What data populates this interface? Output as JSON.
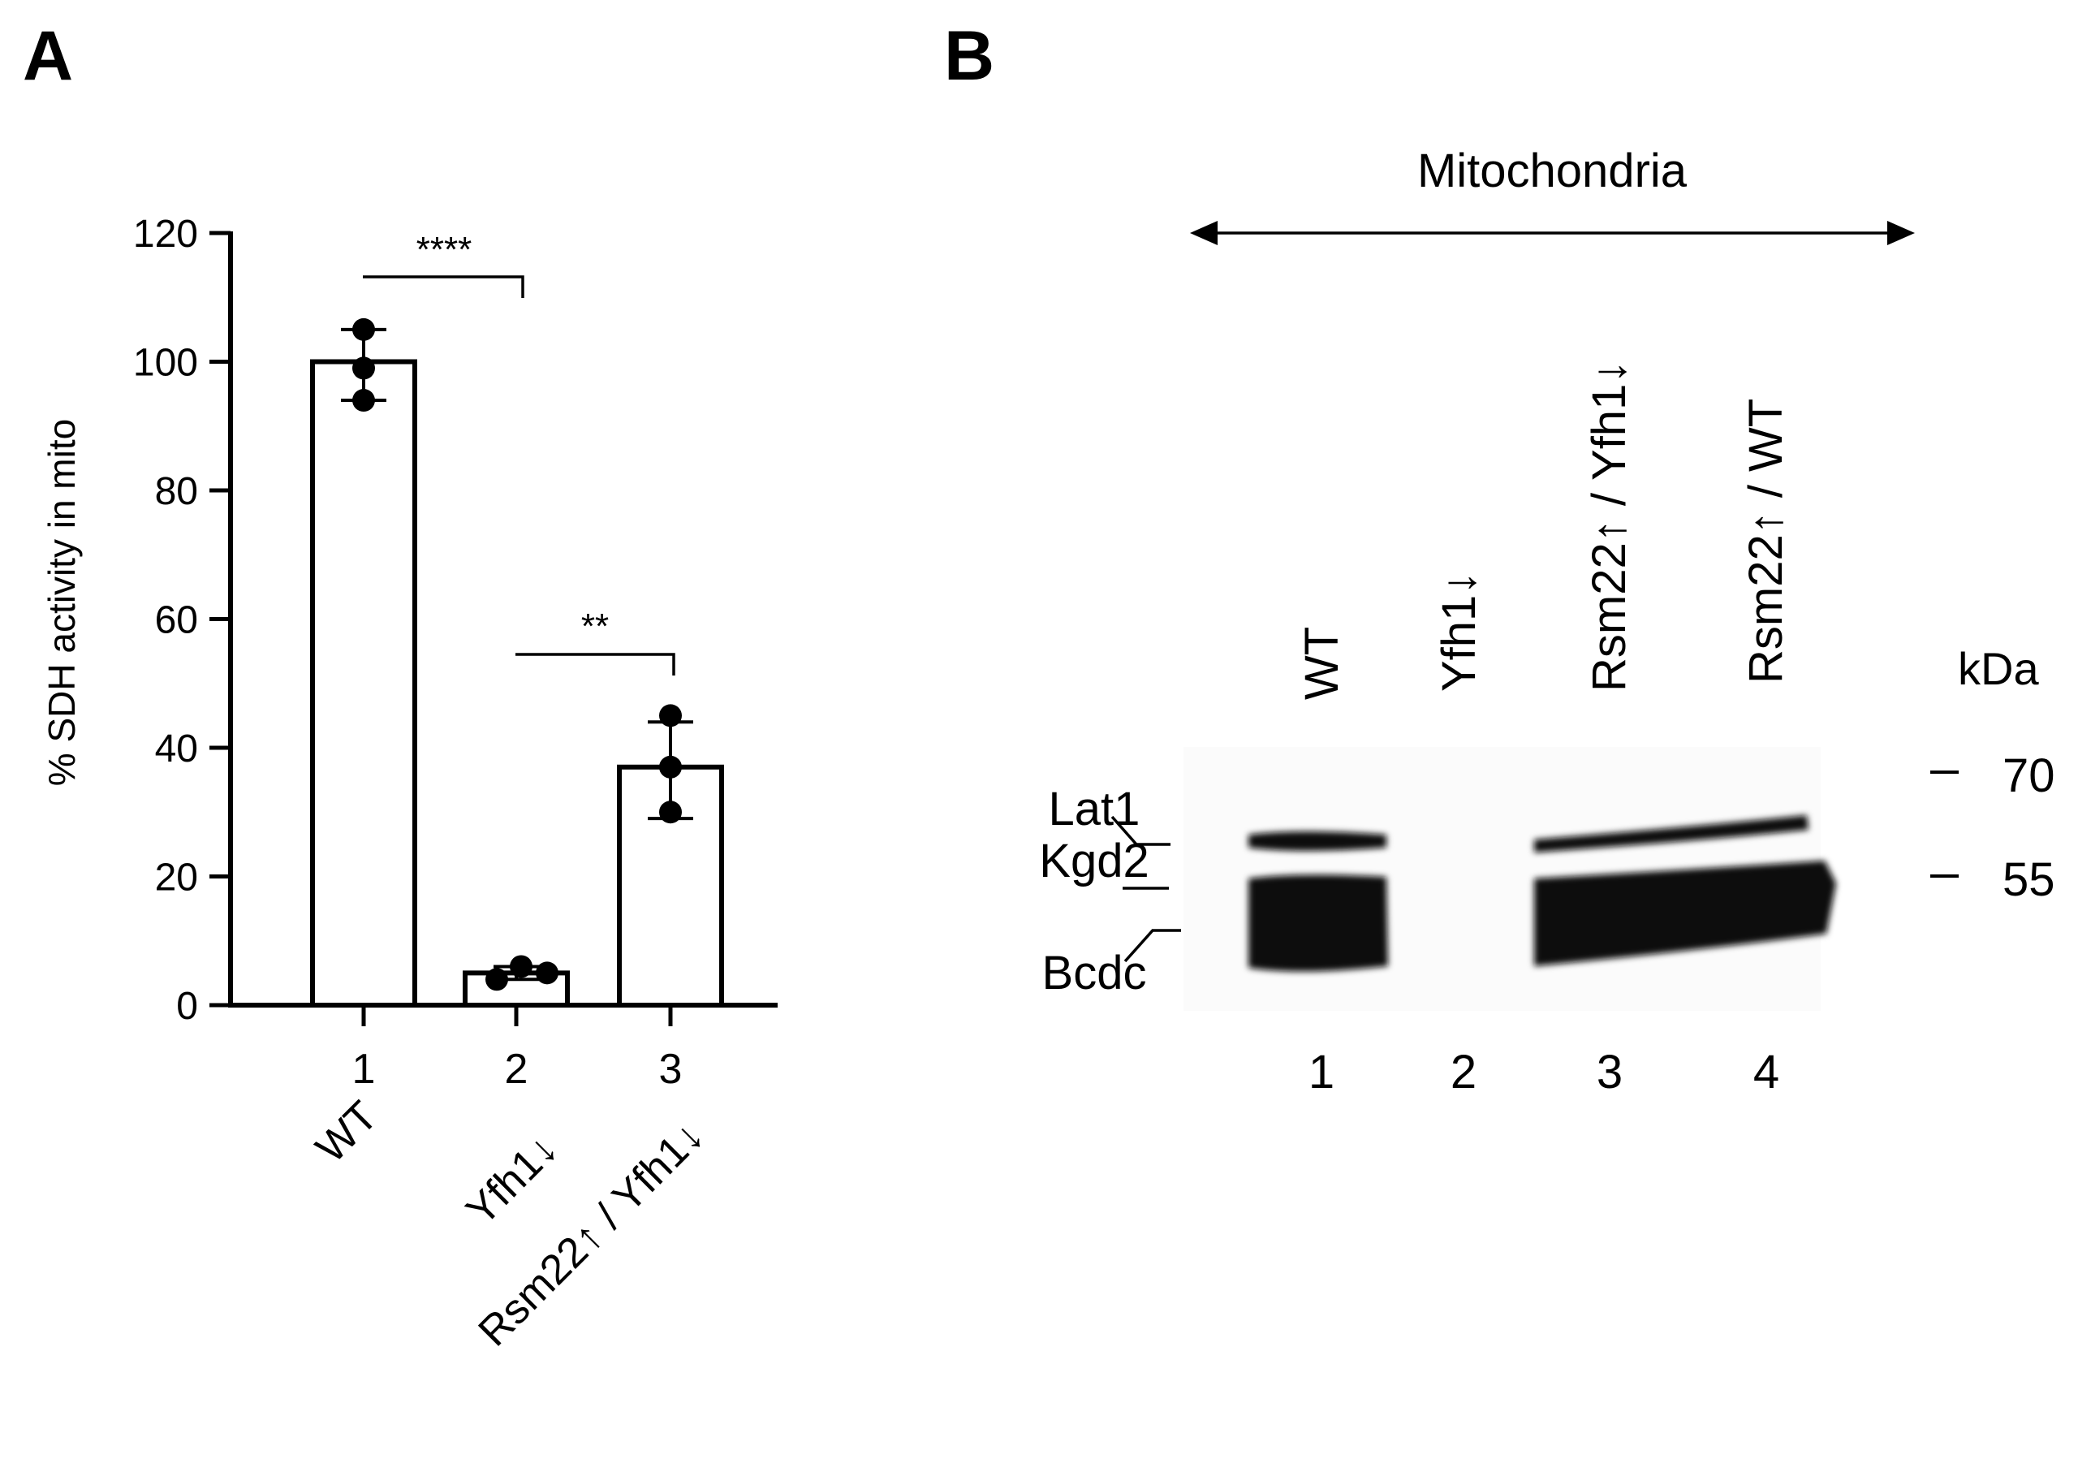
{
  "panels": {
    "a": {
      "letter": "A"
    },
    "b": {
      "letter": "B"
    }
  },
  "chart_data": [
    {
      "type": "bar",
      "panel": "A",
      "ylabel": "% SDH activity in mito",
      "ylim": [
        0,
        120
      ],
      "yticks": [
        0,
        20,
        40,
        60,
        80,
        100,
        120
      ],
      "ytick_labels": [
        "0",
        "20",
        "40",
        "60",
        "80",
        "100",
        "120"
      ],
      "lane_numbers": [
        "1",
        "2",
        "3"
      ],
      "categories": [
        "WT",
        "Yfh1↓",
        "Rsm22↑ / Yfh1↓"
      ],
      "values": [
        100,
        5,
        37
      ],
      "error_bars": [
        [
          94,
          105
        ],
        [
          4,
          6
        ],
        [
          29,
          44
        ]
      ],
      "points": [
        [
          105,
          99,
          94
        ],
        [
          4,
          6,
          5
        ],
        [
          45,
          37,
          30
        ]
      ],
      "significance": [
        {
          "from": 0,
          "to": 1,
          "label": "****"
        },
        {
          "from": 1,
          "to": 2,
          "label": "**"
        }
      ],
      "colors": {
        "bar_fill": "#ffffff",
        "bar_edge": "#000000",
        "points": "#000000"
      }
    },
    {
      "type": "blot",
      "panel": "B",
      "header": "Mitochondria",
      "lanes": [
        "WT",
        "Yfh1↓",
        "Rsm22↑ / Yfh1↓",
        "Rsm22↑ / WT"
      ],
      "lane_numbers": [
        "1",
        "2",
        "3",
        "4"
      ],
      "band_labels": [
        "Lat1",
        "Kgd2",
        "Bcdc"
      ],
      "marker_unit": "kDa",
      "markers": [
        "70",
        "55"
      ],
      "lane_signal": [
        {
          "lane": 1,
          "upper_band": "strong",
          "lower_band": "strong"
        },
        {
          "lane": 2,
          "upper_band": "absent",
          "lower_band": "absent"
        },
        {
          "lane": 3,
          "upper_band": "strong",
          "lower_band": "strong"
        },
        {
          "lane": 4,
          "upper_band": "strong",
          "lower_band": "strong"
        }
      ]
    }
  ]
}
